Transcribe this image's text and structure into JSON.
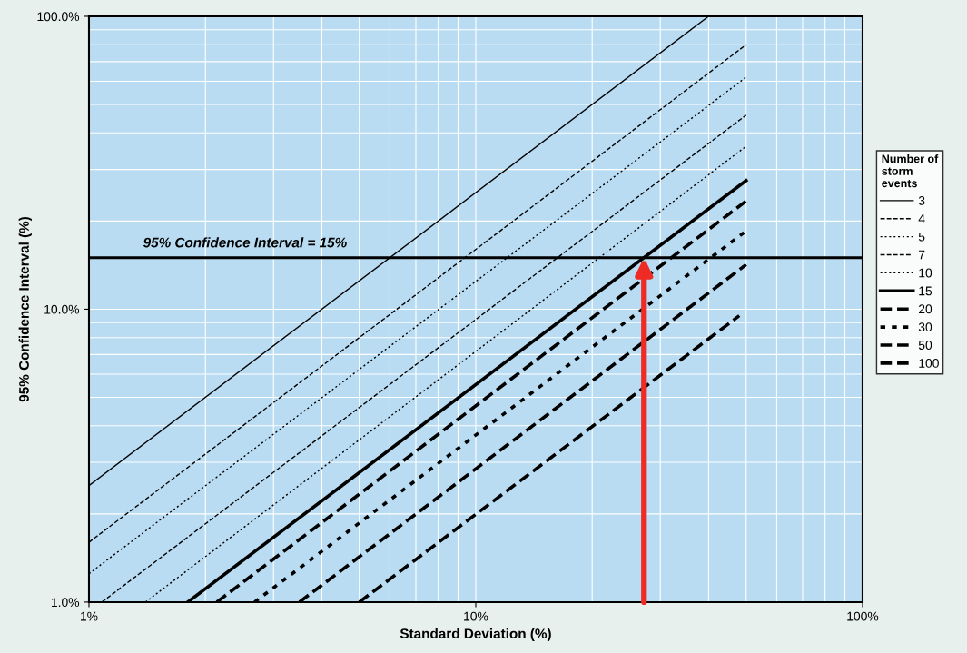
{
  "chart_data": {
    "type": "line",
    "xlabel": "Standard Deviation (%)",
    "ylabel": "95% Confidence Interval (%)",
    "legend_title": "Number of storm events",
    "legend": "right",
    "log": "xy",
    "grid": true,
    "marker": "none",
    "xlim": [
      1,
      100
    ],
    "ylim": [
      1,
      100
    ],
    "xticks": [
      {
        "value": 1,
        "label": "1%"
      },
      {
        "value": 10,
        "label": "10%"
      },
      {
        "value": 100,
        "label": "100%"
      }
    ],
    "yticks": [
      {
        "value": 1,
        "label": "1.0%"
      },
      {
        "value": 10,
        "label": "10.0%"
      },
      {
        "value": 100,
        "label": "100.0%"
      }
    ],
    "series": [
      {
        "name": "3",
        "color": "#000000",
        "line_style": "solid",
        "x": [
          1,
          40
        ],
        "values": [
          2.5,
          100
        ]
      },
      {
        "name": "4",
        "color": "#000000",
        "line_style": "dashed",
        "x": [
          1,
          50
        ],
        "values": [
          1.6,
          80
        ]
      },
      {
        "name": "5",
        "color": "#000000",
        "line_style": "dotted",
        "x": [
          1,
          50
        ],
        "values": [
          1.25,
          62
        ]
      },
      {
        "name": "7",
        "color": "#000000",
        "line_style": "dashed",
        "x": [
          1.08,
          50
        ],
        "values": [
          1,
          46
        ]
      },
      {
        "name": "10",
        "color": "#000000",
        "line_style": "dotted",
        "x": [
          1.4,
          50
        ],
        "values": [
          1,
          36
        ]
      },
      {
        "name": "15",
        "color": "#000000",
        "line_style": "solid",
        "x": [
          1.8,
          50
        ],
        "values": [
          1,
          27.5
        ]
      },
      {
        "name": "20",
        "color": "#000000",
        "line_style": "dashed",
        "x": [
          2.14,
          50
        ],
        "values": [
          1,
          23.4
        ]
      },
      {
        "name": "30",
        "color": "#000000",
        "line_style": "dotted",
        "x": [
          2.68,
          50
        ],
        "values": [
          1,
          18.5
        ]
      },
      {
        "name": "50",
        "color": "#000000",
        "line_style": "dashed",
        "x": [
          3.5,
          50
        ],
        "values": [
          1,
          14.2
        ]
      },
      {
        "name": "100",
        "color": "#000000",
        "line_style": "dashed",
        "x": [
          5.0,
          48
        ],
        "values": [
          1,
          9.5
        ]
      }
    ],
    "ref_lines": [
      {
        "axis": "y",
        "value": 15,
        "label": "95% Confidence Interval = 15%",
        "color": "#000000"
      }
    ]
  }
}
